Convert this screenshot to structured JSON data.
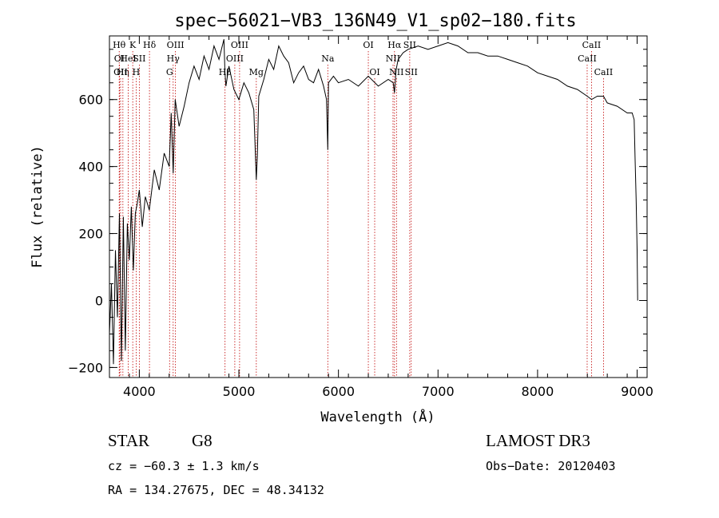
{
  "chart_data": {
    "type": "line",
    "title": "spec−56021−VB3_136N49_V1_sp02−180.fits",
    "xlabel": "Wavelength (Å)",
    "ylabel": "Flux (relative)",
    "xlim": [
      3700,
      9100
    ],
    "ylim": [
      -230,
      790
    ],
    "xticks": [
      4000,
      5000,
      6000,
      7000,
      8000,
      9000
    ],
    "yticks": [
      -200,
      0,
      200,
      400,
      600
    ],
    "x_minor_step": 200,
    "y_minor_step": 50,
    "series": [
      {
        "name": "spectrum",
        "x": [
          3700,
          3720,
          3740,
          3760,
          3780,
          3800,
          3820,
          3840,
          3860,
          3880,
          3900,
          3920,
          3940,
          3960,
          3980,
          4000,
          4030,
          4060,
          4100,
          4150,
          4200,
          4250,
          4300,
          4320,
          4340,
          4360,
          4400,
          4450,
          4500,
          4550,
          4600,
          4650,
          4700,
          4750,
          4800,
          4850,
          4860,
          4870,
          4900,
          4950,
          5000,
          5050,
          5100,
          5150,
          5175,
          5185,
          5200,
          5250,
          5300,
          5350,
          5400,
          5450,
          5500,
          5550,
          5600,
          5650,
          5700,
          5750,
          5800,
          5850,
          5880,
          5893,
          5900,
          5950,
          6000,
          6100,
          6200,
          6300,
          6400,
          6500,
          6550,
          6563,
          6580,
          6600,
          6650,
          6700,
          6800,
          6900,
          7000,
          7100,
          7200,
          7300,
          7400,
          7500,
          7600,
          7700,
          7800,
          7900,
          8000,
          8100,
          8200,
          8300,
          8400,
          8498,
          8542,
          8600,
          8662,
          8700,
          8800,
          8900,
          8950,
          8970,
          8980,
          8990,
          9000,
          9005
        ],
        "y": [
          -100,
          50,
          -190,
          150,
          -50,
          260,
          -180,
          250,
          -150,
          230,
          120,
          280,
          90,
          260,
          290,
          330,
          220,
          310,
          270,
          390,
          330,
          440,
          400,
          560,
          380,
          600,
          520,
          580,
          650,
          700,
          660,
          730,
          690,
          760,
          720,
          780,
          680,
          640,
          700,
          630,
          600,
          650,
          620,
          570,
          360,
          430,
          610,
          660,
          720,
          690,
          760,
          730,
          710,
          650,
          680,
          700,
          660,
          650,
          690,
          640,
          600,
          450,
          650,
          670,
          650,
          660,
          640,
          670,
          640,
          660,
          650,
          620,
          690,
          720,
          740,
          750,
          760,
          750,
          760,
          770,
          760,
          740,
          740,
          730,
          730,
          720,
          710,
          700,
          680,
          670,
          660,
          640,
          630,
          610,
          600,
          610,
          610,
          590,
          580,
          560,
          560,
          540,
          420,
          300,
          150,
          0
        ]
      }
    ],
    "lines": [
      {
        "label": "Hθ",
        "x": 3798,
        "row": 0
      },
      {
        "label": "OI",
        "x": 3800,
        "row": 1
      },
      {
        "label": "OII",
        "x": 3812,
        "row": 2
      },
      {
        "label": "Hη",
        "x": 3835,
        "row": 2
      },
      {
        "label": "HeI",
        "x": 3889,
        "row": 1
      },
      {
        "label": "K",
        "x": 3934,
        "row": 0
      },
      {
        "label": "H",
        "x": 3968,
        "row": 2
      },
      {
        "label": "SII",
        "x": 4000,
        "row": 1
      },
      {
        "label": "Hδ",
        "x": 4102,
        "row": 0
      },
      {
        "label": "OIII",
        "x": 4363,
        "row": 0
      },
      {
        "label": "Hγ",
        "x": 4340,
        "row": 1
      },
      {
        "label": "G",
        "x": 4304,
        "row": 2
      },
      {
        "label": "OIII",
        "x": 5007,
        "row": 0
      },
      {
        "label": "OIII",
        "x": 4959,
        "row": 1
      },
      {
        "label": "Hβ",
        "x": 4861,
        "row": 2
      },
      {
        "label": "Mg",
        "x": 5175,
        "row": 2
      },
      {
        "label": "Na",
        "x": 5893,
        "row": 1
      },
      {
        "label": "OI",
        "x": 6300,
        "row": 0
      },
      {
        "label": "OI",
        "x": 6364,
        "row": 2
      },
      {
        "label": "Hα",
        "x": 6563,
        "row": 0
      },
      {
        "label": "SII",
        "x": 6716,
        "row": 0
      },
      {
        "label": "NII",
        "x": 6548,
        "row": 1
      },
      {
        "label": "NII",
        "x": 6583,
        "row": 2
      },
      {
        "label": "SII",
        "x": 6731,
        "row": 2
      },
      {
        "label": "CaII",
        "x": 8542,
        "row": 0
      },
      {
        "label": "CaII",
        "x": 8498,
        "row": 1
      },
      {
        "label": "CaII",
        "x": 8662,
        "row": 2
      }
    ]
  },
  "info": {
    "object_class": "STAR",
    "subclass": "G8",
    "survey": "LAMOST DR3",
    "redshift_line": "cz = −60.3 ± 1.3 km/s",
    "obs_date_line": "Obs−Date: 20120403",
    "position_line": "RA = 134.27675, DEC =  48.34132"
  },
  "colors": {
    "spectrum": "#000000",
    "line_markers": "#c00000",
    "axes": "#000000"
  }
}
